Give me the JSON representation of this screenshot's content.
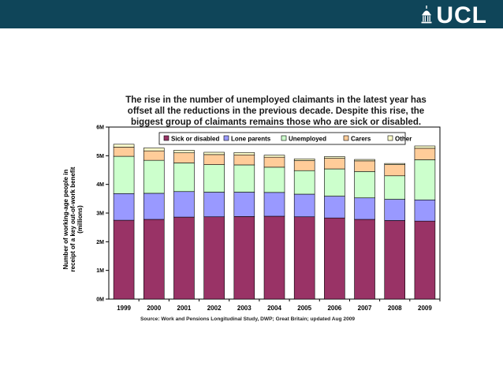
{
  "header": {
    "logo_text": "UCL",
    "background_color": "#0f4559"
  },
  "chart_data": {
    "type": "bar",
    "stacked": true,
    "title_lines": [
      "The rise in the number of unemployed claimants in the latest year has",
      "offset all the reductions in the previous decade.  Despite this rise, the",
      "biggest group of claimants remains those who are sick or disabled."
    ],
    "ylabel_lines": [
      "Number of working-age people in",
      "receipt of a key out-of-work benefit",
      "(millions)"
    ],
    "xlabel": "",
    "categories": [
      "1999",
      "2000",
      "2001",
      "2002",
      "2003",
      "2004",
      "2005",
      "2006",
      "2007",
      "2008",
      "2009"
    ],
    "ylim": [
      0,
      6
    ],
    "yticks": [
      "0M",
      "1M",
      "2M",
      "3M",
      "4M",
      "5M",
      "6M"
    ],
    "grid": false,
    "legend_position": "top",
    "series": [
      {
        "name": "Sick or disabled",
        "color": "#993366",
        "values": [
          2.75,
          2.78,
          2.86,
          2.87,
          2.88,
          2.89,
          2.87,
          2.83,
          2.78,
          2.74,
          2.72
        ]
      },
      {
        "name": "Lone parents",
        "color": "#9999ff",
        "values": [
          0.93,
          0.91,
          0.89,
          0.86,
          0.85,
          0.83,
          0.79,
          0.76,
          0.75,
          0.74,
          0.74
        ]
      },
      {
        "name": "Unemployed",
        "color": "#ccffcc",
        "values": [
          1.3,
          1.15,
          1.0,
          0.96,
          0.95,
          0.88,
          0.82,
          0.95,
          0.92,
          0.82,
          1.4
        ]
      },
      {
        "name": "Carers",
        "color": "#ffcc99",
        "values": [
          0.32,
          0.33,
          0.35,
          0.35,
          0.35,
          0.35,
          0.35,
          0.37,
          0.37,
          0.39,
          0.4
        ]
      },
      {
        "name": "Other",
        "color": "#ffffcc",
        "values": [
          0.1,
          0.1,
          0.09,
          0.08,
          0.08,
          0.07,
          0.06,
          0.06,
          0.05,
          0.04,
          0.08
        ]
      }
    ],
    "source": "Source: Work and Pensions Longitudinal Study, DWP; Great Britain; updated Aug 2009"
  }
}
